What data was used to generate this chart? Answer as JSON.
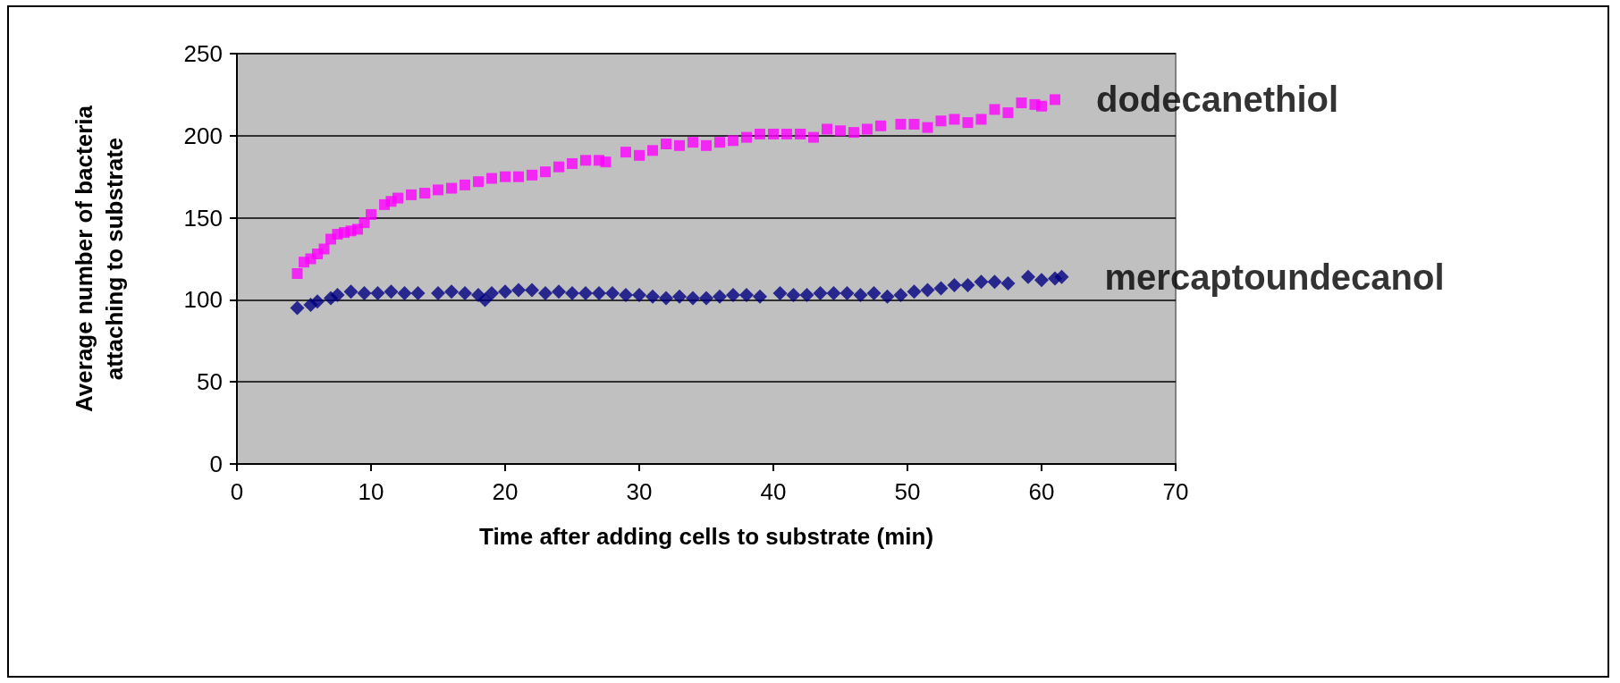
{
  "chart_data": {
    "type": "scatter",
    "xlabel": "Time after adding cells to substrate (min)",
    "ylabel": "Average number of bacteria\nattaching to substrate",
    "xlim": [
      0,
      70
    ],
    "xticks": [
      0,
      10,
      20,
      30,
      40,
      50,
      60,
      70
    ],
    "ylim": [
      0,
      250
    ],
    "yticks": [
      0,
      50,
      100,
      150,
      200,
      250
    ],
    "grid": "y",
    "legend": false,
    "series": [
      {
        "name": "dodecanethiol",
        "color": "#ff00ff",
        "marker": "square",
        "x": [
          4.5,
          5,
          5.5,
          6,
          6.5,
          7,
          7.5,
          8,
          8.5,
          9,
          9.5,
          10,
          11,
          11.5,
          12,
          13,
          14,
          15,
          16,
          17,
          18,
          19,
          20,
          21,
          22,
          23,
          24,
          25,
          26,
          27,
          27.5,
          29,
          30,
          31,
          32,
          33,
          34,
          35,
          36,
          37,
          38,
          39,
          40,
          41,
          42,
          43,
          44,
          45,
          46,
          47,
          48,
          49.5,
          50.5,
          51.5,
          52.5,
          53.5,
          54.5,
          55.5,
          56.5,
          57.5,
          58.5,
          59.5,
          60,
          61
        ],
        "values": [
          116,
          123,
          125,
          128,
          131,
          137,
          140,
          141,
          142,
          143,
          147,
          152,
          158,
          160,
          162,
          164,
          165,
          167,
          168,
          170,
          172,
          174,
          175,
          175,
          176,
          178,
          181,
          183,
          185,
          185,
          184,
          190,
          188,
          191,
          195,
          194,
          196,
          194,
          196,
          197,
          199,
          201,
          201,
          201,
          201,
          199,
          204,
          203,
          202,
          204,
          206,
          207,
          207,
          205,
          209,
          210,
          208,
          210,
          216,
          214,
          220,
          219,
          218,
          222
        ]
      },
      {
        "name": "mercaptoundecanol",
        "color": "#000080",
        "marker": "diamond",
        "x": [
          4.5,
          5.5,
          6,
          7,
          7.5,
          8.5,
          9.5,
          10.5,
          11.5,
          12.5,
          13.5,
          15,
          16,
          17,
          18,
          18.5,
          19,
          20,
          21,
          22,
          23,
          24,
          25,
          26,
          27,
          28,
          29,
          30,
          31,
          32,
          33,
          34,
          35,
          36,
          37,
          38,
          39,
          40.5,
          41.5,
          42.5,
          43.5,
          44.5,
          45.5,
          46.5,
          47.5,
          48.5,
          49.5,
          50.5,
          51.5,
          52.5,
          53.5,
          54.5,
          55.5,
          56.5,
          57.5,
          59,
          60,
          61,
          61.5
        ],
        "values": [
          95,
          97,
          99,
          101,
          103,
          105,
          104,
          104,
          105,
          104,
          104,
          104,
          105,
          104,
          103,
          100,
          104,
          105,
          106,
          106,
          104,
          105,
          104,
          104,
          104,
          104,
          103,
          103,
          102,
          101,
          102,
          101,
          101,
          102,
          103,
          103,
          102,
          104,
          103,
          103,
          104,
          104,
          104,
          103,
          104,
          102,
          103,
          105,
          106,
          107,
          109,
          109,
          111,
          111,
          110,
          114,
          112,
          113,
          114
        ]
      }
    ]
  }
}
